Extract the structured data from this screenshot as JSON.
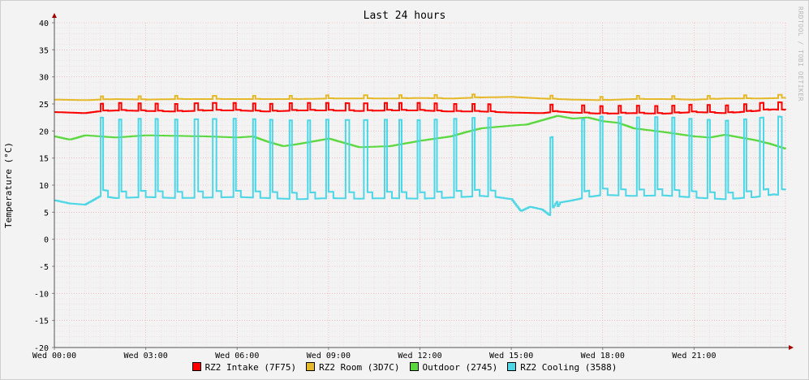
{
  "chart_data": {
    "type": "line",
    "title": "Last 24 hours",
    "ylabel": "Temperature (°C)",
    "watermark": "RRDTOOL / TOBI OETIKER",
    "ylim": [
      -20,
      40
    ],
    "yticks": [
      40,
      35,
      30,
      25,
      20,
      15,
      10,
      5,
      0,
      -5,
      -10,
      -15,
      -20
    ],
    "xlim": [
      0,
      24
    ],
    "xticks": [
      {
        "hour": 0,
        "label": "Wed 00:00"
      },
      {
        "hour": 3,
        "label": "Wed 03:00"
      },
      {
        "hour": 6,
        "label": "Wed 06:00"
      },
      {
        "hour": 9,
        "label": "Wed 09:00"
      },
      {
        "hour": 12,
        "label": "Wed 12:00"
      },
      {
        "hour": 15,
        "label": "Wed 15:00"
      },
      {
        "hour": 18,
        "label": "Wed 18:00"
      },
      {
        "hour": 21,
        "label": "Wed 21:00"
      }
    ],
    "grid": true,
    "legend_position": "bottom",
    "series": [
      {
        "name": "RZ2 Intake (7F75)",
        "color": "#ff0000",
        "x": [
          0,
          1,
          1.4,
          2,
          3,
          4,
          5,
          6,
          7,
          8,
          9,
          10,
          11,
          12,
          13,
          14,
          15,
          16,
          16.5,
          17,
          18,
          19,
          20,
          21,
          22,
          23,
          23.6,
          24
        ],
        "y": [
          23.5,
          23.3,
          23.6,
          23.8,
          23.7,
          23.6,
          23.8,
          23.8,
          23.6,
          23.8,
          23.8,
          23.7,
          23.8,
          23.8,
          23.6,
          23.6,
          23.4,
          23.3,
          23.6,
          23.4,
          23.2,
          23.3,
          23.2,
          23.5,
          23.3,
          23.7,
          24.0,
          23.8
        ],
        "spikes": {
          "height": 1.4,
          "hours": [
            1.5,
            2.1,
            2.75,
            3.3,
            3.95,
            4.6,
            5.2,
            5.85,
            6.5,
            7.05,
            7.7,
            8.3,
            8.9,
            9.55,
            10.15,
            10.8,
            11.3,
            11.9,
            12.45,
            13.1,
            13.7,
            14.2,
            16.25,
            17.3,
            17.9,
            18.5,
            19.1,
            19.7,
            20.25,
            20.8,
            21.4,
            22.0,
            22.6,
            23.15,
            23.75
          ]
        }
      },
      {
        "name": "RZ2 Room (3D7C)",
        "color": "#e6b92b",
        "x": [
          0,
          1,
          2,
          3,
          4,
          5,
          6,
          7,
          8,
          9,
          10,
          11,
          12,
          13,
          14,
          15,
          16,
          17,
          18,
          19,
          20,
          21,
          22,
          23,
          24
        ],
        "y": [
          25.8,
          25.7,
          25.9,
          25.8,
          25.9,
          25.9,
          25.9,
          25.9,
          25.9,
          26.0,
          26.0,
          26.0,
          26.1,
          26.0,
          26.2,
          26.3,
          26.0,
          25.8,
          25.7,
          25.9,
          25.9,
          25.8,
          26.0,
          26.0,
          26.1
        ],
        "spikes": {
          "height": 0.6,
          "hours": [
            1.5,
            2.75,
            3.95,
            5.2,
            6.5,
            7.7,
            8.9,
            10.15,
            11.3,
            12.45,
            13.7,
            16.25,
            17.9,
            19.1,
            20.25,
            21.4,
            22.6,
            23.75
          ]
        }
      },
      {
        "name": "Outdoor (2745)",
        "color": "#5ad83d",
        "x": [
          0,
          0.5,
          1,
          1.5,
          2,
          3,
          4,
          5,
          6,
          6.5,
          7,
          7.5,
          8,
          9,
          10,
          11,
          12,
          13,
          13.5,
          14,
          15,
          15.5,
          16,
          16.5,
          17,
          17.5,
          18,
          18.5,
          19,
          20,
          21,
          21.5,
          22,
          23,
          23.5,
          24
        ],
        "y": [
          19.0,
          18.4,
          19.2,
          19.0,
          18.8,
          19.2,
          19.1,
          19.0,
          18.8,
          19.0,
          18.0,
          17.2,
          17.6,
          18.6,
          17.0,
          17.2,
          18.2,
          19.0,
          19.8,
          20.5,
          21.0,
          21.2,
          22.0,
          22.8,
          22.3,
          22.5,
          21.8,
          21.5,
          20.5,
          19.8,
          19.0,
          18.8,
          19.3,
          18.3,
          17.6,
          16.7
        ]
      },
      {
        "name": "RZ2 Cooling (3588)",
        "color": "#4dd6e6",
        "x": [
          0,
          0.5,
          1,
          1.5,
          2,
          3,
          4,
          5,
          6,
          7,
          8,
          9,
          10,
          11,
          12,
          13,
          14,
          14.5,
          15,
          15.3,
          15.6,
          16,
          16.3,
          16.6,
          17,
          17.5,
          18,
          19,
          20,
          21,
          22,
          23,
          23.6,
          24
        ],
        "y": [
          7.2,
          6.6,
          6.4,
          8.0,
          7.6,
          7.8,
          7.6,
          7.7,
          7.8,
          7.6,
          7.4,
          7.6,
          7.5,
          7.6,
          7.5,
          7.7,
          8.0,
          7.8,
          7.4,
          5.2,
          6.0,
          5.5,
          4.2,
          6.8,
          7.2,
          7.8,
          8.2,
          8.0,
          8.1,
          7.7,
          7.4,
          7.8,
          8.3,
          8.0
        ],
        "spikes": {
          "height": 14.5,
          "hours": [
            1.5,
            2.1,
            2.75,
            3.3,
            3.95,
            4.6,
            5.2,
            5.85,
            6.5,
            7.05,
            7.7,
            8.3,
            8.9,
            9.55,
            10.15,
            10.8,
            11.3,
            11.9,
            12.45,
            13.1,
            13.7,
            14.2,
            16.25,
            17.3,
            17.9,
            18.5,
            19.1,
            19.7,
            20.25,
            20.8,
            21.4,
            22.0,
            22.6,
            23.15,
            23.75
          ]
        }
      }
    ]
  }
}
